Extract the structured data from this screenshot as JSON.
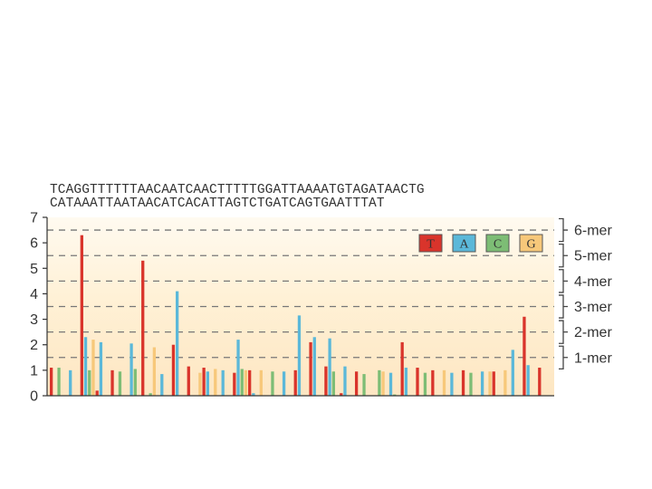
{
  "chart_data": {
    "type": "bar",
    "sequence_lines": [
      "TCAGGTTTTTTAACAATCAACTTTTTGGATTAAAATGTAGATAACTG",
      "CATAAATTAATAACATCACATTAGTCTGATCAGTGAATTTAT"
    ],
    "ylim": [
      0,
      7
    ],
    "yticks": [
      "0",
      "1",
      "2",
      "3",
      "4",
      "5",
      "6",
      "7"
    ],
    "legend": [
      {
        "label": "T",
        "color": "#d9342b"
      },
      {
        "label": "A",
        "color": "#5bb8d9"
      },
      {
        "label": "C",
        "color": "#7dbd75"
      },
      {
        "label": "G",
        "color": "#f7c87a"
      }
    ],
    "mer_levels": [
      {
        "label": "6-mer",
        "value": 6.5
      },
      {
        "label": "5-mer",
        "value": 5.5
      },
      {
        "label": "4-mer",
        "value": 4.5
      },
      {
        "label": "3-mer",
        "value": 3.5
      },
      {
        "label": "2-mer",
        "value": 2.5
      },
      {
        "label": "1-mer",
        "value": 1.5
      }
    ],
    "groups": [
      [
        1.1,
        0,
        1.1,
        0
      ],
      [
        0,
        1.0,
        0,
        0
      ],
      [
        6.3,
        2.3,
        1.0,
        2.2
      ],
      [
        0.2,
        2.1,
        0,
        0
      ],
      [
        1.0,
        0,
        0.95,
        0
      ],
      [
        0,
        2.05,
        1.05,
        0
      ],
      [
        5.3,
        0,
        0.1,
        1.9
      ],
      [
        0,
        0.85,
        0,
        0
      ],
      [
        2.0,
        4.1,
        0,
        0
      ],
      [
        1.15,
        0,
        0,
        0.9
      ],
      [
        1.1,
        0.95,
        0,
        1.05
      ],
      [
        0,
        1.0,
        0,
        0
      ],
      [
        0.9,
        2.2,
        1.05,
        1.0
      ],
      [
        1.0,
        0.1,
        0,
        1.0
      ],
      [
        0,
        0,
        0.95,
        0
      ],
      [
        0,
        0.95,
        0,
        0
      ],
      [
        1.0,
        3.15,
        0,
        0
      ],
      [
        2.1,
        2.3,
        0,
        0
      ],
      [
        1.15,
        2.25,
        0.95,
        0
      ],
      [
        0.1,
        1.15,
        0,
        0
      ],
      [
        0.95,
        0,
        0.85,
        0
      ],
      [
        0,
        0,
        1.0,
        0.95
      ],
      [
        0,
        0.9,
        0.05,
        0
      ],
      [
        2.1,
        1.1,
        0,
        0
      ],
      [
        1.1,
        0,
        0.9,
        0
      ],
      [
        1.0,
        0,
        0,
        1.0
      ],
      [
        0,
        0.9,
        0,
        0
      ],
      [
        1.0,
        0,
        0.9,
        0
      ],
      [
        0,
        0.95,
        0,
        0.95
      ],
      [
        0.95,
        0,
        0,
        1.0
      ],
      [
        0,
        1.8,
        0,
        0
      ],
      [
        3.1,
        1.2,
        0,
        0
      ],
      [
        1.1,
        0,
        0,
        0
      ]
    ]
  }
}
